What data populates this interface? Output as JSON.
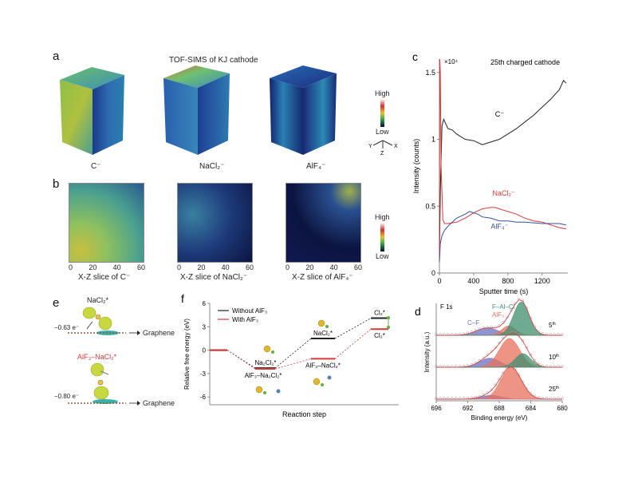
{
  "panel_a": {
    "label": "a",
    "title": "TOF-SIMS of KJ cathode",
    "cubes": [
      {
        "label": "C⁻"
      },
      {
        "label": "NaCl₂⁻"
      },
      {
        "label": "AlF₄⁻"
      }
    ],
    "colorbar": {
      "high": "High",
      "low": "Low"
    },
    "axes_labels": {
      "x": "X",
      "y": "Y",
      "z": "Z"
    }
  },
  "panel_b": {
    "label": "b",
    "slices": [
      {
        "label": "X-Z slice of C⁻"
      },
      {
        "label": "X-Z slice of NaCl₂⁻"
      },
      {
        "label": "X-Z slice of AlF₄⁻"
      }
    ],
    "x_ticks": [
      "0",
      "20",
      "40",
      "60"
    ],
    "colorbar": {
      "high": "High",
      "low": "Low"
    }
  },
  "panel_e": {
    "label": "e",
    "top": {
      "species": "NaCl₂*",
      "charge": "−0.63 e⁻",
      "substrate": "Graphene"
    },
    "bottom": {
      "species": "AlF₃–NaCl₂*",
      "charge": "−0.80 e⁻",
      "substrate": "Graphene"
    },
    "colors": {
      "bottom_species": "#d23a3a"
    }
  },
  "chart_data": [
    {
      "id": "c",
      "panel_label": "c",
      "type": "line",
      "title": "25th charged cathode",
      "title_sup": "th",
      "xlabel": "Sputter time (s)",
      "ylabel": "Intensity (counts)",
      "y_multiplier": "×10⁴",
      "xlim": [
        0,
        1500
      ],
      "ylim": [
        0,
        1.6
      ],
      "x_ticks": [
        0,
        400,
        800,
        1200
      ],
      "y_ticks": [
        0,
        0.5,
        1,
        1.5
      ],
      "series": [
        {
          "name": "C⁻",
          "color": "#222222",
          "x": [
            0,
            10,
            30,
            50,
            100,
            150,
            200,
            300,
            400,
            500,
            600,
            700,
            800,
            900,
            1000,
            1100,
            1200,
            1300,
            1400,
            1450,
            1480
          ],
          "y": [
            0.1,
            0.6,
            1.1,
            1.15,
            1.08,
            1.07,
            1.04,
            1.0,
            0.99,
            0.96,
            0.98,
            1.0,
            1.04,
            1.08,
            1.13,
            1.18,
            1.24,
            1.3,
            1.37,
            1.44,
            1.42
          ]
        },
        {
          "name": "NaCl₂⁻",
          "color": "#d23a3a",
          "x": [
            0,
            5,
            10,
            20,
            40,
            60,
            100,
            200,
            300,
            400,
            500,
            600,
            650,
            700,
            800,
            900,
            1000,
            1100,
            1200,
            1300,
            1400,
            1480
          ],
          "y": [
            0.1,
            1.6,
            1.5,
            0.8,
            0.4,
            0.37,
            0.37,
            0.38,
            0.41,
            0.45,
            0.48,
            0.49,
            0.49,
            0.48,
            0.46,
            0.44,
            0.41,
            0.39,
            0.38,
            0.36,
            0.34,
            0.33
          ]
        },
        {
          "name": "AlF₄⁻",
          "color": "#3c4fa0",
          "x": [
            0,
            10,
            30,
            60,
            100,
            150,
            200,
            300,
            350,
            400,
            450,
            500,
            600,
            700,
            800,
            900,
            1000,
            1200,
            1400,
            1480
          ],
          "y": [
            0.08,
            0.22,
            0.28,
            0.32,
            0.35,
            0.38,
            0.41,
            0.44,
            0.46,
            0.45,
            0.44,
            0.42,
            0.41,
            0.39,
            0.39,
            0.38,
            0.38,
            0.37,
            0.37,
            0.36
          ]
        }
      ]
    },
    {
      "id": "d",
      "panel_label": "d",
      "type": "area",
      "title": "F 1s",
      "xlabel": "Binding energy (eV)",
      "ylabel": "Intensity (a.u.)",
      "xlim": [
        696,
        680
      ],
      "x_ticks": [
        696,
        692,
        688,
        684,
        680
      ],
      "components": [
        {
          "name": "C–F",
          "color": "#6b6fc0"
        },
        {
          "name": "AlF₃",
          "color": "#e8705c"
        },
        {
          "name": "F–Al–Cl",
          "color": "#3e8f6e"
        }
      ],
      "spectra": [
        {
          "label": "5th",
          "peaks": [
            {
              "center": 689.5,
              "height": 0.22,
              "width": 1.4,
              "comp": 0
            },
            {
              "center": 686.8,
              "height": 0.28,
              "width": 0.9,
              "comp": 1
            },
            {
              "center": 685.2,
              "height": 1.0,
              "width": 1.0,
              "comp": 2
            }
          ]
        },
        {
          "label": "10th",
          "peaks": [
            {
              "center": 689.2,
              "height": 0.3,
              "width": 1.3,
              "comp": 0
            },
            {
              "center": 686.7,
              "height": 0.95,
              "width": 1.3,
              "comp": 1
            },
            {
              "center": 685.0,
              "height": 0.45,
              "width": 1.0,
              "comp": 2
            }
          ]
        },
        {
          "label": "25th",
          "peaks": [
            {
              "center": 689.0,
              "height": 0.12,
              "width": 1.3,
              "comp": 0
            },
            {
              "center": 686.5,
              "height": 1.0,
              "width": 1.3,
              "comp": 1
            }
          ]
        }
      ]
    },
    {
      "id": "f",
      "panel_label": "f",
      "type": "line",
      "title": "",
      "xlabel": "Reaction step",
      "ylabel": "Relative free energy (eV)",
      "ylim": [
        -7,
        6
      ],
      "y_ticks": [
        -6,
        -3,
        0,
        3,
        6
      ],
      "legend": [
        {
          "name": "Without AlF₃",
          "color": "#222222"
        },
        {
          "name": "With AlF₃",
          "color": "#d23a3a"
        }
      ],
      "legend_position": "top-left",
      "series": [
        {
          "name": "Without AlF₃",
          "color": "#222222",
          "steps": [
            0,
            1,
            2,
            3
          ],
          "y": [
            0,
            -2.3,
            1.5,
            4.1
          ],
          "labels": [
            "",
            "Na₂Cl₂*",
            "NaCl₂*",
            "Cl₂*"
          ]
        },
        {
          "name": "With AlF₃",
          "color": "#d23a3a",
          "steps": [
            0,
            1,
            2,
            3
          ],
          "y": [
            0,
            -2.4,
            -1.1,
            2.7
          ],
          "labels": [
            "",
            "AlF₃–Na₂Cl₂*",
            "AlF₃–NaCl₂*",
            "Cl₂*"
          ]
        }
      ]
    }
  ]
}
